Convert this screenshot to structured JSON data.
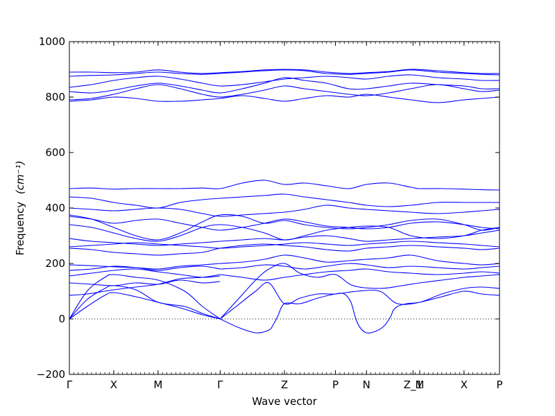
{
  "chart_data": {
    "type": "line",
    "title": "",
    "xlabel": "Wave vector",
    "ylabel": "Frequency",
    "ylabel_unit_math": "(cm⁻¹)",
    "ylim": [
      -200,
      1000
    ],
    "yticks": [
      -200,
      0,
      200,
      400,
      600,
      800,
      1000
    ],
    "xticks": [
      {
        "label": "Γ",
        "x": 0.0
      },
      {
        "label": "X",
        "x": 1.0
      },
      {
        "label": "M",
        "x": 2.0
      },
      {
        "label": "Γ",
        "x": 3.4
      },
      {
        "label": "Z",
        "x": 4.85
      },
      {
        "label": "P",
        "x": 6.0
      },
      {
        "label": "N",
        "x": 6.7
      },
      {
        "label": "Z_1",
        "x": 7.75
      },
      {
        "label": "M",
        "x": 7.9
      },
      {
        "label": "X",
        "x": 8.9
      },
      {
        "label": "P",
        "x": 9.7
      }
    ],
    "xlim": [
      0.0,
      9.7
    ],
    "zero_line": {
      "y": 0,
      "style": "dotted"
    },
    "line_color": "#0000ff",
    "series": [
      {
        "x": [
          0,
          0.4,
          0.8,
          1.0,
          1.5,
          2.0,
          2.5,
          3.0,
          3.4
        ],
        "y": [
          0,
          45,
          85,
          95,
          80,
          60,
          40,
          15,
          0
        ]
      },
      {
        "x": [
          0,
          0.4,
          0.8,
          1.0,
          1.5,
          2.0,
          2.6,
          3.0,
          3.4
        ],
        "y": [
          0,
          70,
          110,
          120,
          105,
          60,
          45,
          20,
          0
        ]
      },
      {
        "x": [
          0,
          0.4,
          0.8,
          1.0,
          1.5,
          2.0,
          2.6,
          3.0,
          3.4
        ],
        "y": [
          0,
          100,
          150,
          160,
          150,
          140,
          100,
          45,
          0
        ]
      },
      {
        "x": [
          3.4,
          3.8,
          4.2,
          4.5,
          4.6,
          4.7,
          4.85,
          5.2,
          5.6,
          6.0,
          6.2,
          6.35,
          6.45,
          6.55,
          6.7,
          6.9,
          7.1,
          7.25,
          7.3,
          7.4,
          7.6,
          7.9,
          8.4,
          8.9,
          9.3,
          9.7
        ],
        "y": [
          0,
          -30,
          -50,
          -40,
          -20,
          10,
          55,
          55,
          75,
          90,
          90,
          60,
          5,
          -30,
          -50,
          -45,
          -25,
          10,
          30,
          45,
          55,
          60,
          80,
          100,
          90,
          85
        ]
      },
      {
        "x": [
          3.4,
          3.8,
          4.2,
          4.5,
          4.85,
          5.2,
          5.6,
          6.0,
          6.5,
          7.0,
          7.4,
          7.9,
          8.4,
          8.9,
          9.3,
          9.7
        ],
        "y": [
          0,
          50,
          100,
          130,
          55,
          75,
          90,
          90,
          100,
          100,
          55,
          60,
          90,
          110,
          115,
          110
        ]
      },
      {
        "x": [
          3.4,
          3.8,
          4.2,
          4.5,
          4.85,
          5.2,
          5.6,
          6.0,
          6.4,
          7.0,
          7.5,
          7.9,
          8.4,
          8.9,
          9.3,
          9.7
        ],
        "y": [
          0,
          70,
          140,
          180,
          200,
          165,
          150,
          160,
          120,
          110,
          120,
          130,
          140,
          150,
          155,
          160
        ]
      },
      {
        "x": [
          0,
          0.4,
          0.8,
          1.0,
          1.5,
          2.0,
          2.5,
          3.0,
          3.4
        ],
        "y": [
          85,
          90,
          100,
          105,
          115,
          125,
          145,
          150,
          160
        ]
      },
      {
        "x": [
          0,
          0.5,
          1.0,
          1.5,
          2.0,
          2.5,
          3.0,
          3.4
        ],
        "y": [
          130,
          125,
          120,
          130,
          125,
          140,
          130,
          135
        ]
      },
      {
        "x": [
          0,
          0.5,
          1.0,
          1.5,
          2.0,
          2.5,
          3.0,
          3.4
        ],
        "y": [
          155,
          165,
          175,
          180,
          170,
          160,
          150,
          155
        ]
      },
      {
        "x": [
          3.4,
          3.9,
          4.4,
          4.85,
          5.3,
          5.8,
          6.3,
          6.7,
          7.2,
          7.7,
          8.3,
          8.9,
          9.3,
          9.7
        ],
        "y": [
          160,
          150,
          140,
          150,
          160,
          170,
          175,
          180,
          170,
          165,
          160,
          165,
          170,
          165
        ]
      },
      {
        "x": [
          0,
          0.5,
          1.0,
          1.5,
          2.0,
          2.5,
          3.0,
          3.4
        ],
        "y": [
          175,
          180,
          190,
          185,
          175,
          185,
          190,
          180
        ]
      },
      {
        "x": [
          3.4,
          3.9,
          4.4,
          4.85,
          5.3,
          5.8,
          6.3,
          6.7,
          7.2,
          7.7,
          8.3,
          8.9,
          9.3,
          9.7
        ],
        "y": [
          180,
          185,
          195,
          190,
          180,
          190,
          200,
          195,
          185,
          190,
          185,
          180,
          185,
          190
        ]
      },
      {
        "x": [
          0,
          0.5,
          1.0,
          1.5,
          2.0,
          2.5,
          3.0,
          3.4,
          3.9,
          4.4,
          4.85,
          5.3,
          5.8,
          6.3,
          6.7,
          7.2,
          7.7,
          8.3,
          8.9,
          9.3,
          9.7
        ],
        "y": [
          195,
          192,
          188,
          185,
          180,
          190,
          195,
          200,
          205,
          215,
          230,
          220,
          205,
          210,
          215,
          220,
          230,
          210,
          200,
          195,
          200
        ]
      },
      {
        "x": [
          0,
          0.5,
          1.0,
          1.5,
          2.0,
          2.5,
          3.0,
          3.4,
          3.9,
          4.4,
          4.85,
          5.3,
          5.8,
          6.3,
          6.7,
          7.2,
          7.7,
          8.3,
          8.9,
          9.3,
          9.7
        ],
        "y": [
          255,
          250,
          240,
          235,
          230,
          235,
          240,
          255,
          265,
          270,
          265,
          260,
          250,
          245,
          255,
          260,
          265,
          260,
          255,
          250,
          255
        ]
      },
      {
        "x": [
          0,
          0.5,
          1.0,
          1.5,
          2.0,
          2.5,
          3.0,
          3.4,
          3.9,
          4.4,
          4.85,
          5.3,
          5.8,
          6.3,
          6.7,
          7.2,
          7.7,
          8.3,
          8.9,
          9.3,
          9.7
        ],
        "y": [
          260,
          265,
          270,
          275,
          270,
          265,
          260,
          255,
          260,
          265,
          270,
          275,
          270,
          265,
          270,
          275,
          280,
          275,
          270,
          265,
          260
        ]
      },
      {
        "x": [
          0,
          0.5,
          1.0,
          1.5,
          2.0,
          2.5,
          3.0,
          3.4,
          3.9,
          4.4,
          4.85,
          5.3,
          5.8,
          6.3,
          6.7,
          7.2,
          7.7,
          8.3,
          8.9,
          9.3,
          9.7
        ],
        "y": [
          290,
          280,
          275,
          270,
          265,
          270,
          275,
          280,
          285,
          290,
          285,
          295,
          300,
          290,
          280,
          285,
          290,
          295,
          300,
          310,
          320
        ]
      },
      {
        "x": [
          0,
          0.5,
          1.0,
          1.5,
          2.0,
          2.5,
          3.0,
          3.4,
          3.9,
          4.4,
          4.85,
          5.3,
          5.8,
          6.3,
          6.7,
          7.2,
          7.7,
          8.3,
          8.9,
          9.3,
          9.7
        ],
        "y": [
          340,
          330,
          310,
          290,
          280,
          300,
          330,
          340,
          330,
          310,
          285,
          300,
          320,
          330,
          335,
          330,
          300,
          290,
          300,
          320,
          330
        ]
      },
      {
        "x": [
          0,
          0.5,
          1.0,
          1.5,
          2.0,
          2.5,
          3.0,
          3.4,
          3.9,
          4.4,
          4.85,
          5.3,
          5.8,
          6.3,
          6.7,
          7.2,
          7.7,
          8.3,
          8.9,
          9.3,
          9.7
        ],
        "y": [
          375,
          360,
          330,
          300,
          285,
          310,
          350,
          375,
          370,
          345,
          355,
          340,
          330,
          325,
          330,
          340,
          355,
          360,
          340,
          320,
          330
        ]
      },
      {
        "x": [
          0,
          0.5,
          1.0,
          1.5,
          2.0,
          2.5,
          3.0,
          3.4,
          3.9,
          4.4,
          4.85,
          5.3,
          5.8,
          6.3,
          6.7,
          7.2,
          7.7,
          8.3,
          8.9,
          9.3,
          9.7
        ],
        "y": [
          370,
          360,
          345,
          355,
          360,
          345,
          330,
          320,
          330,
          345,
          360,
          350,
          335,
          330,
          325,
          330,
          345,
          350,
          340,
          330,
          325
        ]
      },
      {
        "x": [
          0,
          0.5,
          1.0,
          1.5,
          2.0,
          2.5,
          3.0,
          3.4,
          3.9,
          4.4,
          4.85,
          5.3,
          5.8,
          6.3,
          6.7,
          7.2,
          7.7,
          8.3,
          8.9,
          9.3,
          9.7
        ],
        "y": [
          400,
          395,
          390,
          395,
          400,
          395,
          380,
          370,
          375,
          380,
          385,
          395,
          410,
          400,
          395,
          390,
          385,
          380,
          385,
          390,
          395
        ]
      },
      {
        "x": [
          0,
          0.5,
          1.0,
          1.5,
          2.0,
          2.5,
          3.0,
          3.4,
          3.9,
          4.4,
          4.85,
          5.3,
          5.8,
          6.3,
          6.7,
          7.2,
          7.7,
          8.3,
          8.9,
          9.3,
          9.7
        ],
        "y": [
          440,
          435,
          420,
          410,
          400,
          420,
          430,
          435,
          440,
          445,
          450,
          440,
          430,
          420,
          410,
          405,
          410,
          420,
          420,
          420,
          420
        ]
      },
      {
        "x": [
          0,
          0.5,
          1.0,
          1.5,
          2.0,
          2.5,
          3.0,
          3.4,
          3.9,
          4.4,
          4.85,
          5.3,
          5.8,
          6.3,
          6.7,
          7.2,
          7.7,
          7.9,
          8.4,
          8.9,
          9.3,
          9.7
        ],
        "y": [
          470,
          472,
          468,
          470,
          470,
          470,
          472,
          470,
          490,
          500,
          485,
          490,
          480,
          470,
          485,
          490,
          475,
          470,
          470,
          468,
          466,
          465
        ]
      },
      {
        "x": [
          0,
          0.5,
          1.0,
          1.5,
          2.0,
          2.5,
          3.0,
          3.4,
          3.9,
          4.4,
          4.85,
          5.3,
          5.8,
          6.3,
          6.7,
          7.2,
          7.7,
          8.3,
          8.9,
          9.3,
          9.7
        ],
        "y": [
          785,
          790,
          800,
          795,
          785,
          785,
          790,
          795,
          805,
          795,
          785,
          795,
          805,
          800,
          810,
          800,
          790,
          780,
          790,
          795,
          800
        ]
      },
      {
        "x": [
          0,
          0.5,
          1.0,
          1.5,
          2.0,
          2.5,
          3.0,
          3.4,
          3.9,
          4.4,
          4.85,
          5.3,
          5.8,
          6.3,
          6.7,
          7.2,
          7.7,
          8.3,
          8.9,
          9.3,
          9.7
        ],
        "y": [
          790,
          795,
          810,
          830,
          845,
          830,
          810,
          800,
          810,
          825,
          840,
          830,
          820,
          810,
          805,
          815,
          830,
          845,
          830,
          820,
          825
        ]
      },
      {
        "x": [
          0,
          0.5,
          1.0,
          1.5,
          2.0,
          2.5,
          3.0,
          3.4,
          3.9,
          4.4,
          4.85,
          5.3,
          5.8,
          6.3,
          6.7,
          7.2,
          7.7,
          8.3,
          8.9,
          9.3,
          9.7
        ],
        "y": [
          820,
          815,
          825,
          840,
          850,
          840,
          825,
          815,
          830,
          850,
          870,
          860,
          850,
          830,
          830,
          840,
          850,
          845,
          840,
          830,
          830
        ]
      },
      {
        "x": [
          0,
          0.5,
          1.0,
          1.5,
          2.0,
          2.5,
          3.0,
          3.4,
          3.9,
          4.4,
          4.85,
          5.3,
          5.8,
          6.3,
          6.7,
          7.2,
          7.7,
          8.3,
          8.9,
          9.3,
          9.7
        ],
        "y": [
          835,
          845,
          860,
          870,
          875,
          865,
          850,
          840,
          845,
          855,
          865,
          870,
          875,
          870,
          865,
          875,
          880,
          870,
          865,
          860,
          860
        ]
      },
      {
        "x": [
          0,
          0.5,
          1.0,
          1.5,
          2.0,
          2.5,
          3.0,
          3.4,
          3.9,
          4.4,
          4.85,
          5.3,
          5.8,
          6.3,
          6.7,
          7.2,
          7.7,
          8.3,
          8.9,
          9.3,
          9.7
        ],
        "y": [
          875,
          878,
          880,
          885,
          890,
          885,
          882,
          885,
          890,
          895,
          898,
          895,
          885,
          882,
          885,
          890,
          898,
          890,
          885,
          882,
          880
        ]
      },
      {
        "x": [
          0,
          0.5,
          1.0,
          1.5,
          2.0,
          2.5,
          3.0,
          3.4,
          3.9,
          4.4,
          4.85,
          5.3,
          5.8,
          6.3,
          6.7,
          7.2,
          7.7,
          8.3,
          8.9,
          9.3,
          9.7
        ],
        "y": [
          890,
          890,
          888,
          890,
          898,
          890,
          885,
          888,
          892,
          898,
          900,
          898,
          890,
          885,
          888,
          892,
          900,
          895,
          888,
          885,
          885
        ]
      }
    ]
  }
}
